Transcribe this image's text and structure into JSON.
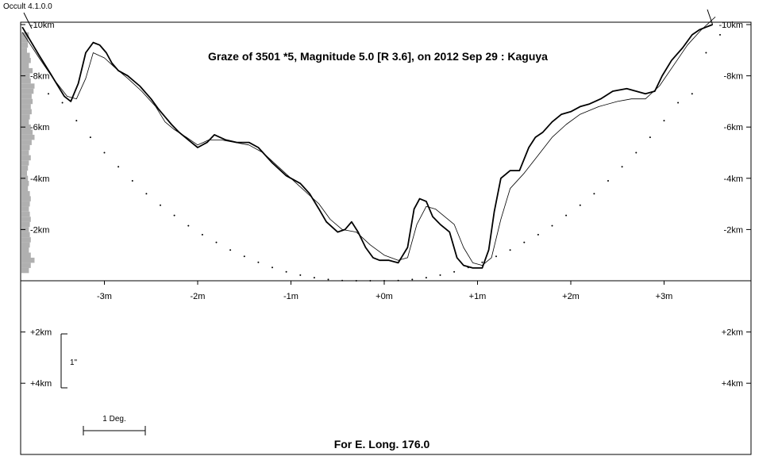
{
  "version_label": "Occult 4.1.0.0",
  "chart_data": {
    "type": "line",
    "title": "Graze of  3501 *5,  Magnitude 5.0 [R 3.6],  on 2012 Sep 29  :  Kaguya",
    "footer": "For E. Long. 176.0",
    "x_unit": "minutes",
    "xlim": [
      -3.9,
      3.9
    ],
    "ylim_km": [
      0,
      10
    ],
    "x_ticks": [
      {
        "value": -3,
        "label": "-3m"
      },
      {
        "value": -2,
        "label": "-2m"
      },
      {
        "value": -1,
        "label": "-1m"
      },
      {
        "value": 0,
        "label": "+0m"
      },
      {
        "value": 1,
        "label": "+1m"
      },
      {
        "value": 2,
        "label": "+2m"
      },
      {
        "value": 3,
        "label": "+3m"
      }
    ],
    "y_ticks_upper": [
      {
        "value": 10,
        "label": "-10km"
      },
      {
        "value": 8,
        "label": "-8km"
      },
      {
        "value": 6,
        "label": "-6km"
      },
      {
        "value": 4,
        "label": "-4km"
      },
      {
        "value": 2,
        "label": "-2km"
      }
    ],
    "y_ticks_lower": [
      {
        "value": 2,
        "label": "+2km"
      },
      {
        "value": 4,
        "label": "+4km"
      }
    ],
    "scale_arcsec_label": "1\"",
    "scale_deg_label": "1 Deg.",
    "series": [
      {
        "role": "kaguya-profile",
        "style": "bold",
        "x": [
          -3.88,
          -3.7,
          -3.58,
          -3.48,
          -3.43,
          -3.36,
          -3.28,
          -3.2,
          -3.12,
          -3.05,
          -2.98,
          -2.92,
          -2.85,
          -2.75,
          -2.62,
          -2.5,
          -2.42,
          -2.35,
          -2.28,
          -2.2,
          -2.1,
          -2.0,
          -1.9,
          -1.82,
          -1.7,
          -1.58,
          -1.45,
          -1.35,
          -1.2,
          -1.05,
          -0.9,
          -0.8,
          -0.7,
          -0.62,
          -0.5,
          -0.42,
          -0.35,
          -0.28,
          -0.2,
          -0.12,
          -0.05,
          0.05,
          0.15,
          0.25,
          0.32,
          0.38,
          0.45,
          0.52,
          0.6,
          0.7,
          0.78,
          0.85,
          0.95,
          1.05,
          1.12,
          1.18,
          1.25,
          1.35,
          1.45,
          1.55,
          1.62,
          1.7,
          1.8,
          1.9,
          2.0,
          2.1,
          2.2,
          2.32,
          2.45,
          2.6,
          2.7,
          2.8,
          2.9,
          2.98,
          3.08,
          3.2,
          3.3,
          3.38,
          3.45,
          3.52
        ],
        "y": [
          9.9,
          8.8,
          8.1,
          7.5,
          7.2,
          7.0,
          7.7,
          8.9,
          9.3,
          9.2,
          8.9,
          8.5,
          8.2,
          8.0,
          7.6,
          7.1,
          6.7,
          6.4,
          6.1,
          5.8,
          5.5,
          5.2,
          5.4,
          5.7,
          5.5,
          5.4,
          5.4,
          5.2,
          4.6,
          4.1,
          3.8,
          3.4,
          2.8,
          2.3,
          1.9,
          2.0,
          2.3,
          1.9,
          1.3,
          0.9,
          0.8,
          0.8,
          0.7,
          1.3,
          2.8,
          3.2,
          3.1,
          2.5,
          2.2,
          1.9,
          0.9,
          0.6,
          0.5,
          0.5,
          1.2,
          2.7,
          4.0,
          4.3,
          4.3,
          5.2,
          5.6,
          5.8,
          6.2,
          6.5,
          6.6,
          6.8,
          6.9,
          7.1,
          7.4,
          7.5,
          7.4,
          7.3,
          7.4,
          8.0,
          8.6,
          9.1,
          9.6,
          9.8,
          9.9,
          10.0
        ]
      },
      {
        "role": "mean-limb",
        "style": "thin",
        "x": [
          -3.88,
          -3.7,
          -3.55,
          -3.4,
          -3.3,
          -3.2,
          -3.12,
          -3.0,
          -2.88,
          -2.75,
          -2.6,
          -2.45,
          -2.35,
          -2.25,
          -2.12,
          -2.0,
          -1.88,
          -1.75,
          -1.6,
          -1.45,
          -1.3,
          -1.15,
          -1.0,
          -0.85,
          -0.7,
          -0.58,
          -0.45,
          -0.3,
          -0.15,
          0.0,
          0.15,
          0.25,
          0.35,
          0.45,
          0.55,
          0.65,
          0.75,
          0.85,
          0.95,
          1.05,
          1.15,
          1.25,
          1.35,
          1.5,
          1.65,
          1.8,
          1.95,
          2.1,
          2.3,
          2.5,
          2.65,
          2.8,
          2.95,
          3.1,
          3.25,
          3.4,
          3.55
        ],
        "y": [
          9.7,
          8.7,
          7.9,
          7.2,
          7.1,
          7.9,
          8.9,
          8.7,
          8.3,
          7.9,
          7.4,
          6.8,
          6.2,
          5.9,
          5.6,
          5.3,
          5.5,
          5.5,
          5.4,
          5.3,
          5.0,
          4.5,
          4.0,
          3.5,
          3.0,
          2.4,
          2.0,
          1.9,
          1.4,
          1.0,
          0.8,
          0.9,
          2.2,
          2.9,
          2.8,
          2.5,
          2.2,
          1.3,
          0.7,
          0.6,
          0.9,
          2.4,
          3.6,
          4.2,
          4.9,
          5.6,
          6.1,
          6.5,
          6.8,
          7.0,
          7.1,
          7.1,
          7.6,
          8.4,
          9.2,
          9.8,
          10.3
        ]
      },
      {
        "role": "graze-path-dots",
        "style": "dotted",
        "x": [
          -3.6,
          -3.45,
          -3.3,
          -3.15,
          -3.0,
          -2.85,
          -2.7,
          -2.55,
          -2.4,
          -2.25,
          -2.1,
          -1.95,
          -1.8,
          -1.65,
          -1.5,
          -1.35,
          -1.2,
          -1.05,
          -0.9,
          -0.75,
          -0.6,
          -0.45,
          -0.3,
          -0.15,
          0.0,
          0.15,
          0.3,
          0.45,
          0.6,
          0.75,
          0.9,
          1.05,
          1.2,
          1.35,
          1.5,
          1.65,
          1.8,
          1.95,
          2.1,
          2.25,
          2.4,
          2.55,
          2.7,
          2.85,
          3.0,
          3.15,
          3.3,
          3.45,
          3.6
        ],
        "y": [
          7.3,
          6.95,
          6.25,
          5.6,
          5.0,
          4.45,
          3.9,
          3.4,
          2.95,
          2.55,
          2.15,
          1.8,
          1.5,
          1.2,
          0.95,
          0.72,
          0.52,
          0.35,
          0.22,
          0.12,
          0.05,
          0.01,
          0.0,
          0.0,
          0.0,
          0.01,
          0.05,
          0.12,
          0.22,
          0.35,
          0.52,
          0.72,
          0.95,
          1.2,
          1.5,
          1.8,
          2.15,
          2.55,
          2.95,
          3.4,
          3.9,
          4.45,
          5.0,
          5.6,
          6.25,
          6.95,
          7.3,
          8.9,
          9.6
        ]
      }
    ],
    "left_limb_histogram": [
      {
        "y": 9.6,
        "len": 0.08
      },
      {
        "y": 9.4,
        "len": 0.07
      },
      {
        "y": 9.2,
        "len": 0.07
      },
      {
        "y": 9.0,
        "len": 0.06
      },
      {
        "y": 8.8,
        "len": 0.09
      },
      {
        "y": 8.6,
        "len": 0.1
      },
      {
        "y": 8.4,
        "len": 0.08
      },
      {
        "y": 8.2,
        "len": 0.12
      },
      {
        "y": 8.0,
        "len": 0.09
      },
      {
        "y": 7.8,
        "len": 0.1
      },
      {
        "y": 7.6,
        "len": 0.14
      },
      {
        "y": 7.4,
        "len": 0.13
      },
      {
        "y": 7.2,
        "len": 0.11
      },
      {
        "y": 7.0,
        "len": 0.12
      },
      {
        "y": 6.8,
        "len": 0.1
      },
      {
        "y": 6.6,
        "len": 0.11
      },
      {
        "y": 6.4,
        "len": 0.09
      },
      {
        "y": 6.2,
        "len": 0.08
      },
      {
        "y": 6.0,
        "len": 0.1
      },
      {
        "y": 5.8,
        "len": 0.12
      },
      {
        "y": 5.6,
        "len": 0.14
      },
      {
        "y": 5.4,
        "len": 0.11
      },
      {
        "y": 5.2,
        "len": 0.09
      },
      {
        "y": 5.0,
        "len": 0.08
      },
      {
        "y": 4.8,
        "len": 0.1
      },
      {
        "y": 4.6,
        "len": 0.08
      },
      {
        "y": 4.4,
        "len": 0.07
      },
      {
        "y": 4.2,
        "len": 0.06
      },
      {
        "y": 4.0,
        "len": 0.07
      },
      {
        "y": 3.8,
        "len": 0.08
      },
      {
        "y": 3.6,
        "len": 0.07
      },
      {
        "y": 3.4,
        "len": 0.09
      },
      {
        "y": 3.2,
        "len": 0.1
      },
      {
        "y": 3.0,
        "len": 0.09
      },
      {
        "y": 2.8,
        "len": 0.08
      },
      {
        "y": 2.6,
        "len": 0.09
      },
      {
        "y": 2.4,
        "len": 0.1
      },
      {
        "y": 2.2,
        "len": 0.09
      },
      {
        "y": 2.0,
        "len": 0.08
      },
      {
        "y": 1.8,
        "len": 0.09
      },
      {
        "y": 1.6,
        "len": 0.1
      },
      {
        "y": 1.4,
        "len": 0.09
      },
      {
        "y": 1.2,
        "len": 0.08
      },
      {
        "y": 1.0,
        "len": 0.1
      },
      {
        "y": 0.8,
        "len": 0.14
      },
      {
        "y": 0.6,
        "len": 0.1
      },
      {
        "y": 0.4,
        "len": 0.08
      }
    ]
  }
}
